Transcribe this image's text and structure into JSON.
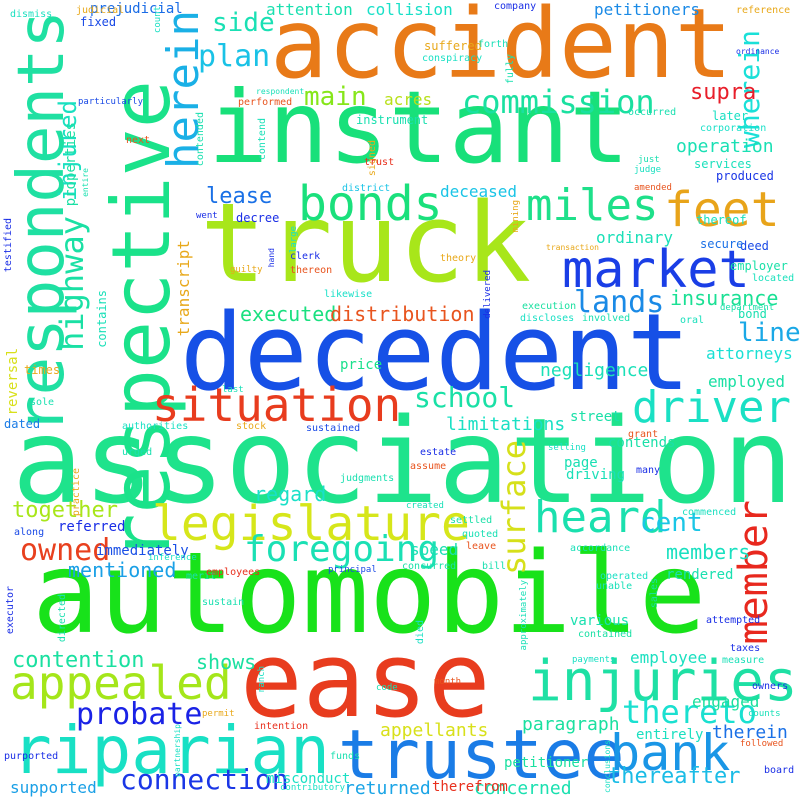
{
  "words": [
    {
      "text": "association",
      "color": "#1ee38c"
    },
    {
      "text": "automobile",
      "color": "#18e21a"
    },
    {
      "text": "decedent",
      "color": "#1650e6"
    },
    {
      "text": "instant",
      "color": "#18e07a"
    },
    {
      "text": "truck",
      "color": "#a8e61a"
    },
    {
      "text": "accident",
      "color": "#e87a18"
    },
    {
      "text": "ease",
      "color": "#e83c1e"
    },
    {
      "text": "respective",
      "color": "#1ae28a"
    },
    {
      "text": "respondents",
      "color": "#1fe0a2"
    },
    {
      "text": "riparian",
      "color": "#18e0c4"
    },
    {
      "text": "trustee",
      "color": "#1a7ce6"
    },
    {
      "text": "injuries",
      "color": "#1ee0a4"
    },
    {
      "text": "legislature",
      "color": "#d6e61a"
    },
    {
      "text": "situation",
      "color": "#e83c1e"
    },
    {
      "text": "market",
      "color": "#1a3ee6"
    },
    {
      "text": "bonds",
      "color": "#1ae07c"
    },
    {
      "text": "appealed",
      "color": "#a4e61a"
    },
    {
      "text": "driver",
      "color": "#1ae0c4"
    },
    {
      "text": "herein",
      "color": "#1ab0e6"
    },
    {
      "text": "heard",
      "color": "#1ae0ae"
    },
    {
      "text": "miles",
      "color": "#1ee08a"
    },
    {
      "text": "feet",
      "color": "#e8a41a"
    },
    {
      "text": "bank",
      "color": "#1a96e6"
    },
    {
      "text": "member",
      "color": "#e8281e"
    },
    {
      "text": "foregoing",
      "color": "#1ae0b4"
    },
    {
      "text": "surface",
      "color": "#d6e01a"
    },
    {
      "text": "commission",
      "color": "#1ae0a0"
    },
    {
      "text": "highway",
      "color": "#1ae0a4"
    },
    {
      "text": "injured",
      "color": "#1ae0c0"
    },
    {
      "text": "owned",
      "color": "#e8401e"
    },
    {
      "text": "probate",
      "color": "#1a22e6"
    },
    {
      "text": "connection",
      "color": "#1a36e6"
    },
    {
      "text": "thereto",
      "color": "#1ae0d0"
    },
    {
      "text": "plan",
      "color": "#1ac2e6"
    },
    {
      "text": "lands",
      "color": "#1a8ae6"
    },
    {
      "text": "school",
      "color": "#1ae0a6"
    },
    {
      "text": "wherein",
      "color": "#1ae0d8"
    },
    {
      "text": "cent",
      "color": "#1ac6e6"
    },
    {
      "text": "side",
      "color": "#1ae0b4"
    },
    {
      "text": "main",
      "color": "#86e61a"
    },
    {
      "text": "contention",
      "color": "#1ae0a0"
    },
    {
      "text": "insurance",
      "color": "#1ae094"
    },
    {
      "text": "line",
      "color": "#1aa8e6"
    },
    {
      "text": "lease",
      "color": "#1a70e6"
    },
    {
      "text": "supra",
      "color": "#e81e2a"
    },
    {
      "text": "together",
      "color": "#a8e61a"
    },
    {
      "text": "members",
      "color": "#1ae0c0"
    },
    {
      "text": "mentioned",
      "color": "#1aa0e6"
    },
    {
      "text": "shows",
      "color": "#1ae0a0"
    },
    {
      "text": "thereafter",
      "color": "#1abce6"
    },
    {
      "text": "executed",
      "color": "#1ae080"
    },
    {
      "text": "distribution",
      "color": "#e8541e"
    },
    {
      "text": "appellants",
      "color": "#d8e01a"
    },
    {
      "text": "regard",
      "color": "#1ae0c8"
    },
    {
      "text": "paragraph",
      "color": "#1ae0a0"
    },
    {
      "text": "therein",
      "color": "#1a70e6"
    },
    {
      "text": "returned",
      "color": "#1aa4e6"
    },
    {
      "text": "concerned",
      "color": "#1ae0b0"
    },
    {
      "text": "supported",
      "color": "#1aa0e6"
    },
    {
      "text": "operation",
      "color": "#1ae0b4"
    },
    {
      "text": "negligence",
      "color": "#1ae0b8"
    },
    {
      "text": "limitations",
      "color": "#1ae0c4"
    },
    {
      "text": "attorneys",
      "color": "#1ae0d4"
    },
    {
      "text": "employed",
      "color": "#1ae0a4"
    },
    {
      "text": "speed",
      "color": "#1ae0b4"
    },
    {
      "text": "engaged",
      "color": "#1ae09c"
    },
    {
      "text": "employee",
      "color": "#1ae0c0"
    },
    {
      "text": "deceased",
      "color": "#1ac4e6"
    },
    {
      "text": "transcript",
      "color": "#e8a81a"
    },
    {
      "text": "acres",
      "color": "#b8e01a"
    },
    {
      "text": "attention",
      "color": "#1ae0b0"
    },
    {
      "text": "collision",
      "color": "#1ae0c8"
    },
    {
      "text": "petitioners",
      "color": "#1a8ae6"
    },
    {
      "text": "ordinary",
      "color": "#1ae0b8"
    },
    {
      "text": "price",
      "color": "#1ae08c"
    },
    {
      "text": "street",
      "color": "#1ae0a8"
    },
    {
      "text": "various",
      "color": "#1ae0b0"
    },
    {
      "text": "driving",
      "color": "#1ae0b8"
    },
    {
      "text": "contends",
      "color": "#1ae0a8"
    },
    {
      "text": "page",
      "color": "#1ae0b4"
    },
    {
      "text": "entirely",
      "color": "#1ae0c0"
    },
    {
      "text": "rendered",
      "color": "#1ae0b0"
    },
    {
      "text": "immediately",
      "color": "#1a50e6"
    },
    {
      "text": "referred",
      "color": "#1a2ee6"
    },
    {
      "text": "misconduct",
      "color": "#1ae0c4"
    },
    {
      "text": "therefrom",
      "color": "#e8301e"
    },
    {
      "text": "petitioner",
      "color": "#1ae0a0"
    },
    {
      "text": "employer",
      "color": "#1ae0a8"
    },
    {
      "text": "bond",
      "color": "#1ae0b0"
    },
    {
      "text": "later",
      "color": "#1ae0c4"
    },
    {
      "text": "services",
      "color": "#1ae0bc"
    },
    {
      "text": "produced",
      "color": "#1a36e6"
    },
    {
      "text": "thereof",
      "color": "#1ae0bc"
    },
    {
      "text": "deed",
      "color": "#1a4ae6"
    },
    {
      "text": "decree",
      "color": "#1a2ee6"
    },
    {
      "text": "instrument",
      "color": "#1ae0b0"
    },
    {
      "text": "suffered",
      "color": "#e8a81a"
    },
    {
      "text": "conspiracy",
      "color": "#1ae0c4"
    },
    {
      "text": "performed",
      "color": "#e8541e"
    },
    {
      "text": "contended",
      "color": "#1ae0b0"
    },
    {
      "text": "contend",
      "color": "#1ae0b8"
    },
    {
      "text": "properties",
      "color": "#1ae0a4"
    },
    {
      "text": "prejudicial",
      "color": "#1a6ce6"
    },
    {
      "text": "fixed",
      "color": "#1a4ae6"
    },
    {
      "text": "dismiss",
      "color": "#1ae0c0"
    },
    {
      "text": "company",
      "color": "#1a2ee6"
    },
    {
      "text": "reference",
      "color": "#e8a81a"
    },
    {
      "text": "ordinance",
      "color": "#1a2ee6"
    },
    {
      "text": "occurred",
      "color": "#1ae0b0"
    },
    {
      "text": "corporation",
      "color": "#1ae0c8"
    },
    {
      "text": "respondent",
      "color": "#1ae0b8"
    },
    {
      "text": "particularly",
      "color": "#1a4ae6"
    },
    {
      "text": "next",
      "color": "#e8541e"
    },
    {
      "text": "signed",
      "color": "#e8a81a"
    },
    {
      "text": "trust",
      "color": "#e8301e"
    },
    {
      "text": "district",
      "color": "#1ac4e6"
    },
    {
      "text": "judge",
      "color": "#1ae0c0"
    },
    {
      "text": "amended",
      "color": "#e8541e"
    },
    {
      "text": "just",
      "color": "#1ae0b0"
    },
    {
      "text": "secure",
      "color": "#1a70e6"
    },
    {
      "text": "located",
      "color": "#1ae0bc"
    },
    {
      "text": "department",
      "color": "#1ae0a8"
    },
    {
      "text": "theory",
      "color": "#e8a81a"
    },
    {
      "text": "clerk",
      "color": "#1a2ee6"
    },
    {
      "text": "thereon",
      "color": "#e8541e"
    },
    {
      "text": "went",
      "color": "#1a2ee6"
    },
    {
      "text": "guilty",
      "color": "#e8a81a"
    },
    {
      "text": "likewise",
      "color": "#1ae0c8"
    },
    {
      "text": "transaction",
      "color": "#e8a81a"
    },
    {
      "text": "execution",
      "color": "#1ae0a0"
    },
    {
      "text": "discloses",
      "color": "#1ae0c4"
    },
    {
      "text": "involved",
      "color": "#1ae0b0"
    },
    {
      "text": "oral",
      "color": "#1ae0bc"
    },
    {
      "text": "delivered",
      "color": "#1a2ee6"
    },
    {
      "text": "contains",
      "color": "#1ae0b8"
    },
    {
      "text": "reversal",
      "color": "#d8e01a"
    },
    {
      "text": "times",
      "color": "#e8a81a"
    },
    {
      "text": "sole",
      "color": "#1ae0b0"
    },
    {
      "text": "dated",
      "color": "#1a7ce6"
    },
    {
      "text": "authorities",
      "color": "#1ae0c4"
    },
    {
      "text": "stock",
      "color": "#e8a81a"
    },
    {
      "text": "sustained",
      "color": "#1a4ae6"
    },
    {
      "text": "last",
      "color": "#1ae0b8"
    },
    {
      "text": "grant",
      "color": "#e8541e"
    },
    {
      "text": "urged",
      "color": "#1ae0b0"
    },
    {
      "text": "estate",
      "color": "#1a2ee6"
    },
    {
      "text": "assume",
      "color": "#e8541e"
    },
    {
      "text": "judgments",
      "color": "#1ae0b0"
    },
    {
      "text": "selling",
      "color": "#1ae0c4"
    },
    {
      "text": "many",
      "color": "#1a2ee6"
    },
    {
      "text": "practice",
      "color": "#e8a81a"
    },
    {
      "text": "created",
      "color": "#1ae0b8"
    },
    {
      "text": "settled",
      "color": "#1ae0a8"
    },
    {
      "text": "quoted",
      "color": "#1ae0b4"
    },
    {
      "text": "along",
      "color": "#1a4ae6"
    },
    {
      "text": "inference",
      "color": "#1ae0c4"
    },
    {
      "text": "merit",
      "color": "#1ae0b0"
    },
    {
      "text": "leave",
      "color": "#e8541e"
    },
    {
      "text": "commenced",
      "color": "#1ae0c0"
    },
    {
      "text": "accordance",
      "color": "#1ae0b8"
    },
    {
      "text": "employees",
      "color": "#e8301e"
    },
    {
      "text": "principal",
      "color": "#1a4ae6"
    },
    {
      "text": "concurred",
      "color": "#1ae0a8"
    },
    {
      "text": "bill",
      "color": "#1ae0b0"
    },
    {
      "text": "operated",
      "color": "#1ae0c4"
    },
    {
      "text": "unable",
      "color": "#1ae0b8"
    },
    {
      "text": "sales",
      "color": "#1ae0a0"
    },
    {
      "text": "directed",
      "color": "#1ae0b0"
    },
    {
      "text": "died",
      "color": "#1ae0c4"
    },
    {
      "text": "approximately",
      "color": "#1ae0b8"
    },
    {
      "text": "contained",
      "color": "#1ae0a4"
    },
    {
      "text": "attempted",
      "color": "#1a2ee6"
    },
    {
      "text": "sustain",
      "color": "#1ae0b0"
    },
    {
      "text": "executor",
      "color": "#1a2ee6"
    },
    {
      "text": "ranch",
      "color": "#1ae0c4"
    },
    {
      "text": "taxes",
      "color": "#1a2ee6"
    },
    {
      "text": "measure",
      "color": "#1ae0b8"
    },
    {
      "text": "payments",
      "color": "#1ae0c4"
    },
    {
      "text": "owners",
      "color": "#1a2ee6"
    },
    {
      "text": "code",
      "color": "#1ae0b0"
    },
    {
      "text": "month",
      "color": "#e8541e"
    },
    {
      "text": "conclusions",
      "color": "#1ae0c4"
    },
    {
      "text": "counts",
      "color": "#1ae0b8"
    },
    {
      "text": "permit",
      "color": "#e8a81a"
    },
    {
      "text": "intention",
      "color": "#e8301e"
    },
    {
      "text": "funds",
      "color": "#1ae0b0"
    },
    {
      "text": "purported",
      "color": "#1a2ee6"
    },
    {
      "text": "partnership",
      "color": "#1ae0c4"
    },
    {
      "text": "followed",
      "color": "#e8541e"
    },
    {
      "text": "board",
      "color": "#1a2ee6"
    },
    {
      "text": "contributory",
      "color": "#1ae0c4"
    },
    {
      "text": "entire",
      "color": "#1ae0b0"
    },
    {
      "text": "testified",
      "color": "#1a2ee6"
    },
    {
      "text": "large",
      "color": "#1ae0c4"
    },
    {
      "text": "hand",
      "color": "#1a2ee6"
    },
    {
      "text": "forth",
      "color": "#1ae0b8"
    },
    {
      "text": "fully",
      "color": "#1ae0b0"
    },
    {
      "text": "mining",
      "color": "#e8a81a"
    },
    {
      "text": "count",
      "color": "#1ae0c4"
    },
    {
      "text": "judicial",
      "color": "#e8a81a"
    }
  ]
}
